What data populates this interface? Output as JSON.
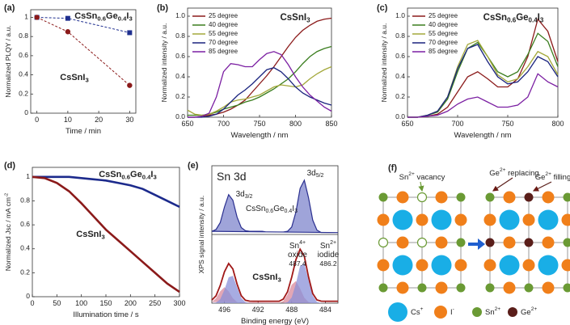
{
  "chart_data": [
    {
      "type": "line",
      "label": "(a)",
      "x_label": "Time / min",
      "y_label": "Normalized PLQY / a.u.",
      "xlim": [
        -2,
        32
      ],
      "xticks": [
        0,
        10,
        20,
        30
      ],
      "ylim": [
        0,
        1.08
      ],
      "yticks": [
        0,
        0.2,
        0.4,
        0.6,
        0.8,
        1
      ],
      "line_style": "dashed",
      "x": [
        0,
        10,
        30
      ],
      "series": [
        {
          "name": "CsSn0.6Ge0.4I3",
          "color": "#1f2f8f",
          "marker": "square",
          "values": [
            1,
            0.99,
            0.84
          ]
        },
        {
          "name": "CsSnI3",
          "color": "#8b1a1a",
          "marker": "circle",
          "values": [
            1,
            0.85,
            0.29
          ]
        }
      ]
    },
    {
      "type": "line",
      "label": "(b)",
      "title": "CsSnI3",
      "title_color": "#d0202a",
      "x_label": "Wavelength / nm",
      "y_label": "Normalized intensity / a.u.",
      "xlim": [
        650,
        850
      ],
      "xticks": [
        650,
        700,
        750,
        800,
        850
      ],
      "ylim": [
        0,
        1.08
      ],
      "yticks": [
        {
          "value": 0,
          "label": "0.0"
        },
        0.2,
        0.4,
        0.6,
        0.8,
        {
          "value": 1,
          "label": "1.0"
        }
      ],
      "legend": "top-left",
      "x": [
        650,
        660,
        670,
        680,
        690,
        700,
        710,
        720,
        730,
        740,
        750,
        760,
        770,
        780,
        790,
        800,
        810,
        820,
        830,
        840,
        850
      ],
      "series": [
        {
          "name": "25 degree",
          "color": "#8b1a1a",
          "values": [
            0,
            0,
            0.01,
            0.02,
            0.03,
            0.05,
            0.08,
            0.12,
            0.17,
            0.25,
            0.33,
            0.41,
            0.5,
            0.6,
            0.7,
            0.79,
            0.86,
            0.91,
            0.95,
            0.97,
            0.98
          ]
        },
        {
          "name": "40 degree",
          "color": "#3a7d1e",
          "values": [
            0.02,
            0.02,
            0.02,
            0.03,
            0.05,
            0.08,
            0.1,
            0.12,
            0.15,
            0.17,
            0.2,
            0.24,
            0.28,
            0.33,
            0.38,
            0.45,
            0.53,
            0.6,
            0.65,
            0.68,
            0.7
          ]
        },
        {
          "name": "55 degree",
          "color": "#a3a83a",
          "values": [
            0.07,
            0.03,
            0.02,
            0.03,
            0.06,
            0.1,
            0.15,
            0.17,
            0.18,
            0.2,
            0.22,
            0.26,
            0.3,
            0.32,
            0.31,
            0.3,
            0.32,
            0.38,
            0.43,
            0.47,
            0.5
          ]
        },
        {
          "name": "70 degree",
          "color": "#1a237e",
          "values": [
            0,
            0,
            0,
            0.01,
            0.03,
            0.08,
            0.15,
            0.22,
            0.27,
            0.33,
            0.4,
            0.47,
            0.49,
            0.45,
            0.38,
            0.3,
            0.24,
            0.2,
            0.17,
            0.14,
            0.12
          ]
        },
        {
          "name": "85 degree",
          "color": "#7b1fa2",
          "values": [
            0,
            0,
            0.01,
            0.04,
            0.2,
            0.45,
            0.53,
            0.52,
            0.5,
            0.5,
            0.57,
            0.63,
            0.65,
            0.62,
            0.52,
            0.4,
            0.3,
            0.22,
            0.16,
            0.1,
            0.06
          ]
        }
      ]
    },
    {
      "type": "line",
      "label": "(c)",
      "title": "CsSn0.6Ge0.4I3",
      "title_color": "#1f2f8f",
      "x_label": "Wavelength / nm",
      "y_label": "Normalized intensity / a.u.",
      "xlim": [
        650,
        800
      ],
      "xticks": [
        650,
        700,
        750,
        800
      ],
      "ylim": [
        0,
        1.08
      ],
      "yticks": [
        {
          "value": 0,
          "label": "0.0"
        },
        0.2,
        0.4,
        0.6,
        0.8,
        {
          "value": 1,
          "label": "1.0"
        }
      ],
      "legend": "top-left",
      "x": [
        650,
        660,
        670,
        680,
        690,
        700,
        710,
        720,
        730,
        740,
        750,
        760,
        770,
        780,
        790,
        800
      ],
      "series": [
        {
          "name": "25 degree",
          "color": "#8b1a1a",
          "values": [
            0,
            0,
            0.01,
            0.03,
            0.1,
            0.25,
            0.4,
            0.45,
            0.38,
            0.3,
            0.3,
            0.38,
            0.6,
            0.97,
            0.85,
            0.55
          ]
        },
        {
          "name": "40 degree",
          "color": "#3a7d1e",
          "values": [
            0,
            0,
            0.02,
            0.05,
            0.18,
            0.45,
            0.68,
            0.74,
            0.6,
            0.45,
            0.4,
            0.45,
            0.62,
            0.83,
            0.75,
            0.5
          ]
        },
        {
          "name": "55 degree",
          "color": "#a3a83a",
          "values": [
            0,
            0,
            0.02,
            0.06,
            0.2,
            0.5,
            0.72,
            0.76,
            0.6,
            0.42,
            0.35,
            0.38,
            0.5,
            0.65,
            0.6,
            0.42
          ]
        },
        {
          "name": "70 degree",
          "color": "#1a237e",
          "values": [
            0,
            0,
            0.02,
            0.06,
            0.2,
            0.48,
            0.68,
            0.72,
            0.55,
            0.4,
            0.33,
            0.35,
            0.45,
            0.6,
            0.55,
            0.4
          ]
        },
        {
          "name": "85 degree",
          "color": "#7b1fa2",
          "values": [
            0,
            0,
            0.01,
            0.02,
            0.06,
            0.13,
            0.18,
            0.2,
            0.15,
            0.1,
            0.1,
            0.12,
            0.2,
            0.43,
            0.35,
            0.3
          ]
        }
      ]
    },
    {
      "type": "line",
      "label": "(d)",
      "x_label": "Illumination time / s",
      "y_label": "Normalized Jsc / mA cm-2",
      "xlim": [
        0,
        300
      ],
      "xticks": [
        0,
        50,
        100,
        150,
        200,
        250,
        300
      ],
      "ylim": [
        0,
        1.08
      ],
      "yticks": [
        0,
        0.2,
        0.4,
        0.6,
        0.8,
        1
      ],
      "x": [
        0,
        25,
        50,
        75,
        100,
        125,
        150,
        175,
        200,
        225,
        250,
        275,
        300
      ],
      "series": [
        {
          "name": "CsSn0.6Ge0.4I3",
          "color": "#1c2a8c",
          "values": [
            1,
            1,
            1,
            1,
            0.99,
            0.98,
            0.97,
            0.95,
            0.93,
            0.9,
            0.85,
            0.8,
            0.75
          ]
        },
        {
          "name": "CsSnI3",
          "color": "#8b1a1a",
          "values": [
            1,
            0.99,
            0.95,
            0.88,
            0.78,
            0.67,
            0.56,
            0.47,
            0.38,
            0.29,
            0.2,
            0.11,
            0.04
          ]
        }
      ]
    },
    {
      "type": "xps",
      "label": "(e)",
      "title": "Sn 3d",
      "x_label": "Binding energy (eV)",
      "y_label": "XPS signal intensity / a.u.",
      "xlim": [
        497.5,
        482.5
      ],
      "xticks": [
        496,
        492,
        488,
        484
      ],
      "x": [
        497.5,
        497,
        496.5,
        496,
        495.5,
        495,
        494.5,
        494,
        493.5,
        493,
        492.5,
        492,
        491.5,
        491,
        490.5,
        490,
        489.5,
        489,
        488.5,
        488,
        487.5,
        487,
        486.5,
        486,
        485.5,
        485,
        484.5,
        484,
        483.5,
        483,
        482.5
      ],
      "panels": [
        {
          "ylim": [
            0,
            1
          ],
          "peak_labels": [
            "3d3/2",
            "3d5/2"
          ],
          "series": [
            {
              "name": "CsSn0.6Ge0.4I3",
              "color": "#2a2f8f",
              "fill": "#7f86cc",
              "values": [
                0.05,
                0.08,
                0.19,
                0.44,
                0.64,
                0.55,
                0.28,
                0.11,
                0.06,
                0.05,
                0.05,
                0.05,
                0.05,
                0.04,
                0.04,
                0.04,
                0.04,
                0.04,
                0.05,
                0.12,
                0.36,
                0.74,
                0.87,
                0.59,
                0.23,
                0.07,
                0.03,
                0.03,
                0.03,
                0.03,
                0.03
              ]
            }
          ]
        },
        {
          "ylim": [
            0,
            1
          ],
          "series": [
            {
              "name": "CsSnI3",
              "color": "#a01818",
              "values": [
                0.049,
                0.116,
                0.277,
                0.491,
                0.621,
                0.536,
                0.3,
                0.117,
                0.045,
                0.032,
                0.03,
                0.03,
                0.03,
                0.03,
                0.03,
                0.03,
                0.03,
                0.064,
                0.178,
                0.407,
                0.681,
                0.844,
                0.734,
                0.411,
                0.151,
                0.051,
                0.032,
                0.03,
                0.03,
                0.03,
                0.03
              ]
            },
            {
              "color": "#d98a9c",
              "values": [
                0.018,
                0.077,
                0.186,
                0.25,
                0.186,
                0.077,
                0.018,
                0.005,
                0,
                0,
                0,
                0,
                0,
                0,
                0,
                0,
                0,
                0.034,
                0.134,
                0.289,
                0.346,
                0.229,
                0.084,
                0.017,
                0.003,
                0,
                0,
                0,
                0,
                0,
                0
              ]
            },
            {
              "color": "#8a90d8",
              "values": [
                0.001,
                0.009,
                0.061,
                0.211,
                0.405,
                0.429,
                0.252,
                0.082,
                0.015,
                0.002,
                0,
                0,
                0,
                0,
                0,
                0,
                0,
                0,
                0.014,
                0.088,
                0.305,
                0.585,
                0.62,
                0.364,
                0.118,
                0.021,
                0.002,
                0,
                0,
                0,
                0
              ]
            }
          ],
          "annotations": [
            {
              "lines": [
                "Sn4+",
                "oxide"
              ],
              "value": 487.4,
              "color": "#c0282d"
            },
            {
              "lines": [
                "Sn2+",
                "iodide"
              ],
              "value": 486.2,
              "color": "#1f2a8f"
            }
          ]
        }
      ]
    }
  ],
  "diagram": {
    "label": "(f)",
    "annotations": [
      "Sn2+ vacancy",
      "Ge2+ replacing",
      "Ge2+ filling"
    ],
    "legend": [
      {
        "label": "Cs+",
        "color": "#19aee6"
      },
      {
        "label": "I-",
        "color": "#f07f1a"
      },
      {
        "label": "Sn2+",
        "color": "#6a9a34"
      },
      {
        "label": "Ge2+",
        "color": "#5a1e1a"
      }
    ]
  }
}
